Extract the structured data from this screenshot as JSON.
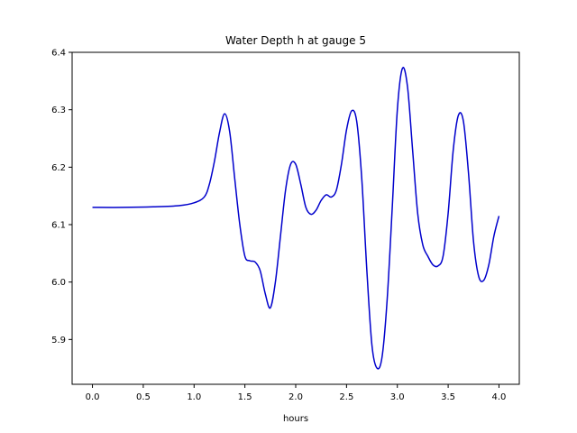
{
  "chart_data": {
    "type": "line",
    "title": "Water Depth h at gauge 5",
    "xlabel": "hours",
    "ylabel": "",
    "xlim": [
      -0.2,
      4.2
    ],
    "ylim": [
      5.822,
      6.4
    ],
    "xticks": [
      0.0,
      0.5,
      1.0,
      1.5,
      2.0,
      2.5,
      3.0,
      3.5,
      4.0
    ],
    "xtick_labels": [
      "0.0",
      "0.5",
      "1.0",
      "1.5",
      "2.0",
      "2.5",
      "3.0",
      "3.5",
      "4.0"
    ],
    "yticks": [
      5.9,
      6.0,
      6.1,
      6.2,
      6.3,
      6.4
    ],
    "ytick_labels": [
      "5.9",
      "6.0",
      "6.1",
      "6.2",
      "6.3",
      "6.4"
    ],
    "grid": false,
    "legend": "none",
    "series": [
      {
        "color": "#0000cc",
        "x": [
          0.0,
          0.3,
          0.6,
          0.85,
          1.0,
          1.1,
          1.15,
          1.2,
          1.25,
          1.3,
          1.35,
          1.4,
          1.45,
          1.5,
          1.55,
          1.6,
          1.65,
          1.7,
          1.75,
          1.8,
          1.85,
          1.9,
          1.95,
          2.0,
          2.05,
          2.1,
          2.15,
          2.2,
          2.25,
          2.3,
          2.35,
          2.4,
          2.45,
          2.5,
          2.55,
          2.6,
          2.65,
          2.7,
          2.75,
          2.8,
          2.85,
          2.9,
          2.95,
          3.0,
          3.05,
          3.1,
          3.15,
          3.2,
          3.25,
          3.3,
          3.35,
          3.4,
          3.45,
          3.5,
          3.55,
          3.6,
          3.65,
          3.7,
          3.75,
          3.8,
          3.85,
          3.9,
          3.95,
          4.0
        ],
        "y": [
          6.13,
          6.13,
          6.131,
          6.133,
          6.138,
          6.148,
          6.17,
          6.21,
          6.26,
          6.293,
          6.262,
          6.18,
          6.1,
          6.045,
          6.037,
          6.035,
          6.02,
          5.98,
          5.955,
          6.0,
          6.08,
          6.16,
          6.205,
          6.205,
          6.17,
          6.13,
          6.118,
          6.125,
          6.142,
          6.152,
          6.148,
          6.16,
          6.205,
          6.265,
          6.298,
          6.28,
          6.18,
          6.02,
          5.89,
          5.85,
          5.87,
          5.97,
          6.13,
          6.3,
          6.372,
          6.34,
          6.23,
          6.12,
          6.065,
          6.045,
          6.03,
          6.028,
          6.045,
          6.12,
          6.23,
          6.29,
          6.28,
          6.19,
          6.07,
          6.01,
          6.003,
          6.03,
          6.08,
          6.115
        ]
      }
    ]
  }
}
